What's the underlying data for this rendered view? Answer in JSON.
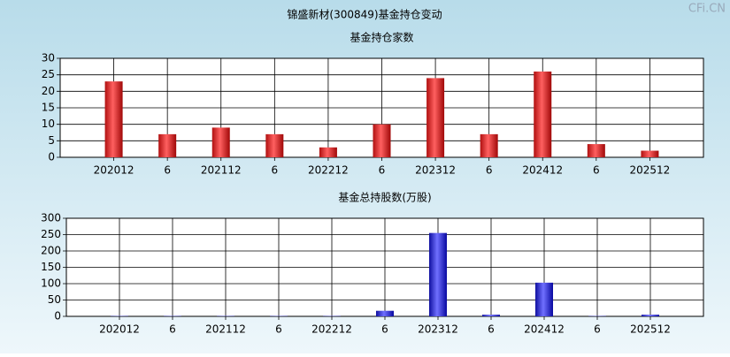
{
  "title": "锦盛新材(300849)基金持仓变动",
  "watermark": "CFi.CN",
  "chart_data": [
    {
      "type": "bar",
      "title": "基金持仓家数",
      "categories": [
        "202012",
        "6",
        "202112",
        "6",
        "202212",
        "6",
        "202312",
        "6",
        "202412",
        "6",
        "202512"
      ],
      "values": [
        23,
        7,
        9,
        7,
        3,
        10,
        24,
        7,
        26,
        4,
        2
      ],
      "color": "red",
      "ylim": [
        0,
        30
      ],
      "yticks": [
        0,
        5,
        10,
        15,
        20,
        25,
        30
      ],
      "grid": true
    },
    {
      "type": "bar",
      "title": "基金总持股数(万股)",
      "categories": [
        "202012",
        "6",
        "202112",
        "6",
        "202212",
        "6",
        "202312",
        "6",
        "202412",
        "6",
        "202512"
      ],
      "values": [
        1,
        1,
        1,
        1,
        1,
        17,
        255,
        5,
        103,
        1,
        5
      ],
      "color": "blue",
      "ylim": [
        0,
        300
      ],
      "yticks": [
        0,
        50,
        100,
        150,
        200,
        250,
        300
      ],
      "grid": true
    }
  ]
}
